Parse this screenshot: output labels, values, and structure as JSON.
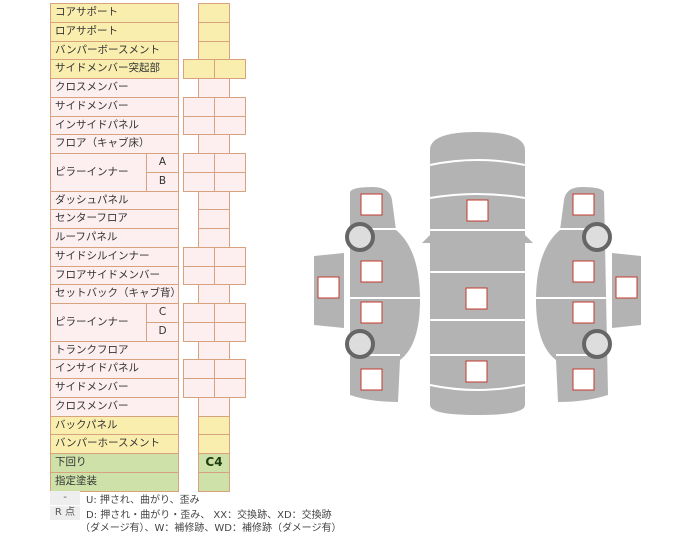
{
  "rows": [
    {
      "label": "コアサポート",
      "color": "y",
      "cells": 1
    },
    {
      "label": "ロアサポート",
      "color": "y",
      "cells": 1
    },
    {
      "label": "バンパーボースメント",
      "color": "y",
      "cells": 1
    },
    {
      "label": "サイドメンバー突起部",
      "color": "y",
      "cells": 2
    },
    {
      "label": "クロスメンバー",
      "color": "p",
      "cells": 1
    },
    {
      "label": "サイドメンバー",
      "color": "p",
      "cells": 2
    },
    {
      "label": "インサイドパネル",
      "color": "p",
      "cells": 2
    },
    {
      "label": "フロア（キャブ床）",
      "color": "p",
      "cells": 1
    },
    {
      "label": "ピラーインナー",
      "color": "p",
      "cells": 2,
      "subs": [
        "A",
        "B"
      ]
    },
    {
      "label": "ダッシュパネル",
      "color": "p",
      "cells": 1
    },
    {
      "label": "センターフロア",
      "color": "p",
      "cells": 1
    },
    {
      "label": "ルーフパネル",
      "color": "p",
      "cells": 1
    },
    {
      "label": "サイドシルインナー",
      "color": "p",
      "cells": 2
    },
    {
      "label": "フロアサイドメンバー",
      "color": "p",
      "cells": 2
    },
    {
      "label": "セットバック（キャブ背）",
      "color": "p",
      "cells": 1
    },
    {
      "label": "ピラーインナー",
      "color": "p",
      "cells": 2,
      "subs": [
        "C",
        "D"
      ]
    },
    {
      "label": "トランクフロア",
      "color": "p",
      "cells": 1
    },
    {
      "label": "インサイドパネル",
      "color": "p",
      "cells": 2
    },
    {
      "label": "サイドメンバー",
      "color": "p",
      "cells": 2
    },
    {
      "label": "クロスメンバー",
      "color": "p",
      "cells": 1
    },
    {
      "label": "バックパネル",
      "color": "y",
      "cells": 1
    },
    {
      "label": "バンパーホースメント",
      "color": "y",
      "cells": 1
    },
    {
      "label": "下回り",
      "color": "g",
      "cells": 1,
      "value": "C4"
    },
    {
      "label": "指定塗装",
      "color": "g",
      "cells": 1
    }
  ],
  "legend": [
    {
      "key": "-",
      "text": "U: 押され、曲がり、歪み"
    },
    {
      "key": "R 点",
      "text": "D: 押され・曲がり・歪み、 XX：交換跡、XD：交換跡",
      "text2": "（ダメージ有）、W：補修跡、WD：補修跡（ダメージ有）"
    }
  ],
  "colors": {
    "body": "#b3b3b3",
    "marker": "#c0392b",
    "wheel": "#666666"
  }
}
